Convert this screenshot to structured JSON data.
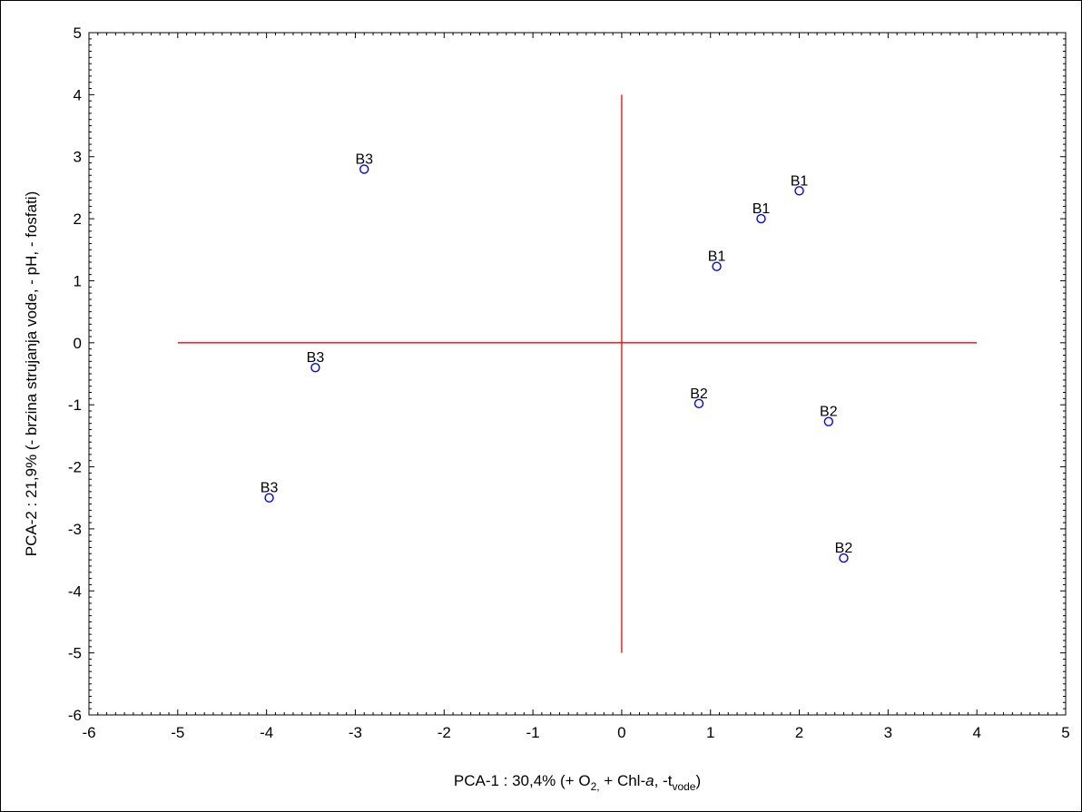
{
  "chart_data": {
    "type": "scatter",
    "title": "",
    "xlabel": {
      "prefix": "PCA-1 : 30,4% (+ O",
      "sub1": "2,",
      "mid": " + Chl-",
      "italic": "a",
      "mid2": ", -t",
      "sub2": "vode",
      "suffix": ")"
    },
    "ylabel": "PCA-2 : 21,9% (- brzina strujanja vode, - pH, - fosfati)",
    "xlim": [
      -6,
      5
    ],
    "ylim": [
      -6,
      5
    ],
    "xticks": [
      "-6",
      "-5",
      "-4",
      "-3",
      "-2",
      "-1",
      "0",
      "1",
      "2",
      "3",
      "4",
      "5"
    ],
    "yticks": [
      "-6",
      "-5",
      "-4",
      "-3",
      "-2",
      "-1",
      "0",
      "1",
      "2",
      "3",
      "4",
      "5"
    ],
    "points": [
      {
        "label": "B3",
        "x": -2.9,
        "y": 2.8
      },
      {
        "label": "B3",
        "x": -3.45,
        "y": -0.4
      },
      {
        "label": "B3",
        "x": -3.97,
        "y": -2.5
      },
      {
        "label": "B1",
        "x": 2.0,
        "y": 2.45
      },
      {
        "label": "B1",
        "x": 1.57,
        "y": 2.0
      },
      {
        "label": "B1",
        "x": 1.07,
        "y": 1.23
      },
      {
        "label": "B2",
        "x": 0.87,
        "y": -0.98
      },
      {
        "label": "B2",
        "x": 2.33,
        "y": -1.27
      },
      {
        "label": "B2",
        "x": 2.5,
        "y": -3.47
      }
    ],
    "reference_lines": [
      {
        "orientation": "horizontal",
        "y": 0,
        "from": -5,
        "to": 4
      },
      {
        "orientation": "vertical",
        "x": 0,
        "from": -5,
        "to": 4
      }
    ],
    "grid": false,
    "legend": "none",
    "colors": {
      "marker": "#0000ff",
      "reference_line": "#ff0000",
      "axis": "#000000",
      "background": "#ffffff"
    }
  }
}
